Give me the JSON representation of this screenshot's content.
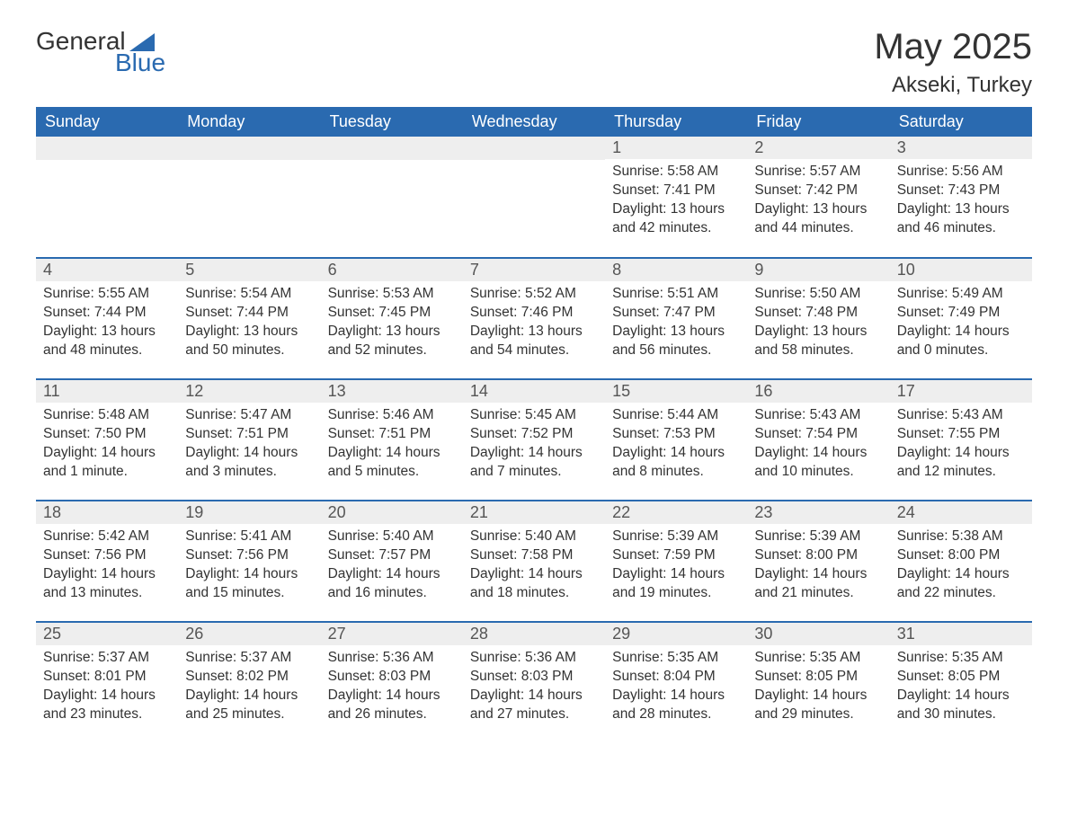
{
  "logo": {
    "text1": "General",
    "text2": "Blue"
  },
  "title": "May 2025",
  "location": "Akseki, Turkey",
  "colors": {
    "header_bg": "#2a6ab0",
    "header_text": "#ffffff",
    "daynum_bg": "#eeeeee",
    "daynum_text": "#555555",
    "body_text": "#333333",
    "row_border": "#2a6ab0",
    "page_bg": "#ffffff"
  },
  "typography": {
    "title_fontsize": 40,
    "location_fontsize": 24,
    "header_fontsize": 18,
    "daynum_fontsize": 18,
    "content_fontsize": 15.5,
    "font_family": "Arial"
  },
  "layout": {
    "columns": 7,
    "rows": 5,
    "col_width_pct": 14.28
  },
  "day_names": [
    "Sunday",
    "Monday",
    "Tuesday",
    "Wednesday",
    "Thursday",
    "Friday",
    "Saturday"
  ],
  "weeks": [
    [
      null,
      null,
      null,
      null,
      {
        "d": "1",
        "sr": "Sunrise: 5:58 AM",
        "ss": "Sunset: 7:41 PM",
        "dl": "Daylight: 13 hours and 42 minutes."
      },
      {
        "d": "2",
        "sr": "Sunrise: 5:57 AM",
        "ss": "Sunset: 7:42 PM",
        "dl": "Daylight: 13 hours and 44 minutes."
      },
      {
        "d": "3",
        "sr": "Sunrise: 5:56 AM",
        "ss": "Sunset: 7:43 PM",
        "dl": "Daylight: 13 hours and 46 minutes."
      }
    ],
    [
      {
        "d": "4",
        "sr": "Sunrise: 5:55 AM",
        "ss": "Sunset: 7:44 PM",
        "dl": "Daylight: 13 hours and 48 minutes."
      },
      {
        "d": "5",
        "sr": "Sunrise: 5:54 AM",
        "ss": "Sunset: 7:44 PM",
        "dl": "Daylight: 13 hours and 50 minutes."
      },
      {
        "d": "6",
        "sr": "Sunrise: 5:53 AM",
        "ss": "Sunset: 7:45 PM",
        "dl": "Daylight: 13 hours and 52 minutes."
      },
      {
        "d": "7",
        "sr": "Sunrise: 5:52 AM",
        "ss": "Sunset: 7:46 PM",
        "dl": "Daylight: 13 hours and 54 minutes."
      },
      {
        "d": "8",
        "sr": "Sunrise: 5:51 AM",
        "ss": "Sunset: 7:47 PM",
        "dl": "Daylight: 13 hours and 56 minutes."
      },
      {
        "d": "9",
        "sr": "Sunrise: 5:50 AM",
        "ss": "Sunset: 7:48 PM",
        "dl": "Daylight: 13 hours and 58 minutes."
      },
      {
        "d": "10",
        "sr": "Sunrise: 5:49 AM",
        "ss": "Sunset: 7:49 PM",
        "dl": "Daylight: 14 hours and 0 minutes."
      }
    ],
    [
      {
        "d": "11",
        "sr": "Sunrise: 5:48 AM",
        "ss": "Sunset: 7:50 PM",
        "dl": "Daylight: 14 hours and 1 minute."
      },
      {
        "d": "12",
        "sr": "Sunrise: 5:47 AM",
        "ss": "Sunset: 7:51 PM",
        "dl": "Daylight: 14 hours and 3 minutes."
      },
      {
        "d": "13",
        "sr": "Sunrise: 5:46 AM",
        "ss": "Sunset: 7:51 PM",
        "dl": "Daylight: 14 hours and 5 minutes."
      },
      {
        "d": "14",
        "sr": "Sunrise: 5:45 AM",
        "ss": "Sunset: 7:52 PM",
        "dl": "Daylight: 14 hours and 7 minutes."
      },
      {
        "d": "15",
        "sr": "Sunrise: 5:44 AM",
        "ss": "Sunset: 7:53 PM",
        "dl": "Daylight: 14 hours and 8 minutes."
      },
      {
        "d": "16",
        "sr": "Sunrise: 5:43 AM",
        "ss": "Sunset: 7:54 PM",
        "dl": "Daylight: 14 hours and 10 minutes."
      },
      {
        "d": "17",
        "sr": "Sunrise: 5:43 AM",
        "ss": "Sunset: 7:55 PM",
        "dl": "Daylight: 14 hours and 12 minutes."
      }
    ],
    [
      {
        "d": "18",
        "sr": "Sunrise: 5:42 AM",
        "ss": "Sunset: 7:56 PM",
        "dl": "Daylight: 14 hours and 13 minutes."
      },
      {
        "d": "19",
        "sr": "Sunrise: 5:41 AM",
        "ss": "Sunset: 7:56 PM",
        "dl": "Daylight: 14 hours and 15 minutes."
      },
      {
        "d": "20",
        "sr": "Sunrise: 5:40 AM",
        "ss": "Sunset: 7:57 PM",
        "dl": "Daylight: 14 hours and 16 minutes."
      },
      {
        "d": "21",
        "sr": "Sunrise: 5:40 AM",
        "ss": "Sunset: 7:58 PM",
        "dl": "Daylight: 14 hours and 18 minutes."
      },
      {
        "d": "22",
        "sr": "Sunrise: 5:39 AM",
        "ss": "Sunset: 7:59 PM",
        "dl": "Daylight: 14 hours and 19 minutes."
      },
      {
        "d": "23",
        "sr": "Sunrise: 5:39 AM",
        "ss": "Sunset: 8:00 PM",
        "dl": "Daylight: 14 hours and 21 minutes."
      },
      {
        "d": "24",
        "sr": "Sunrise: 5:38 AM",
        "ss": "Sunset: 8:00 PM",
        "dl": "Daylight: 14 hours and 22 minutes."
      }
    ],
    [
      {
        "d": "25",
        "sr": "Sunrise: 5:37 AM",
        "ss": "Sunset: 8:01 PM",
        "dl": "Daylight: 14 hours and 23 minutes."
      },
      {
        "d": "26",
        "sr": "Sunrise: 5:37 AM",
        "ss": "Sunset: 8:02 PM",
        "dl": "Daylight: 14 hours and 25 minutes."
      },
      {
        "d": "27",
        "sr": "Sunrise: 5:36 AM",
        "ss": "Sunset: 8:03 PM",
        "dl": "Daylight: 14 hours and 26 minutes."
      },
      {
        "d": "28",
        "sr": "Sunrise: 5:36 AM",
        "ss": "Sunset: 8:03 PM",
        "dl": "Daylight: 14 hours and 27 minutes."
      },
      {
        "d": "29",
        "sr": "Sunrise: 5:35 AM",
        "ss": "Sunset: 8:04 PM",
        "dl": "Daylight: 14 hours and 28 minutes."
      },
      {
        "d": "30",
        "sr": "Sunrise: 5:35 AM",
        "ss": "Sunset: 8:05 PM",
        "dl": "Daylight: 14 hours and 29 minutes."
      },
      {
        "d": "31",
        "sr": "Sunrise: 5:35 AM",
        "ss": "Sunset: 8:05 PM",
        "dl": "Daylight: 14 hours and 30 minutes."
      }
    ]
  ]
}
